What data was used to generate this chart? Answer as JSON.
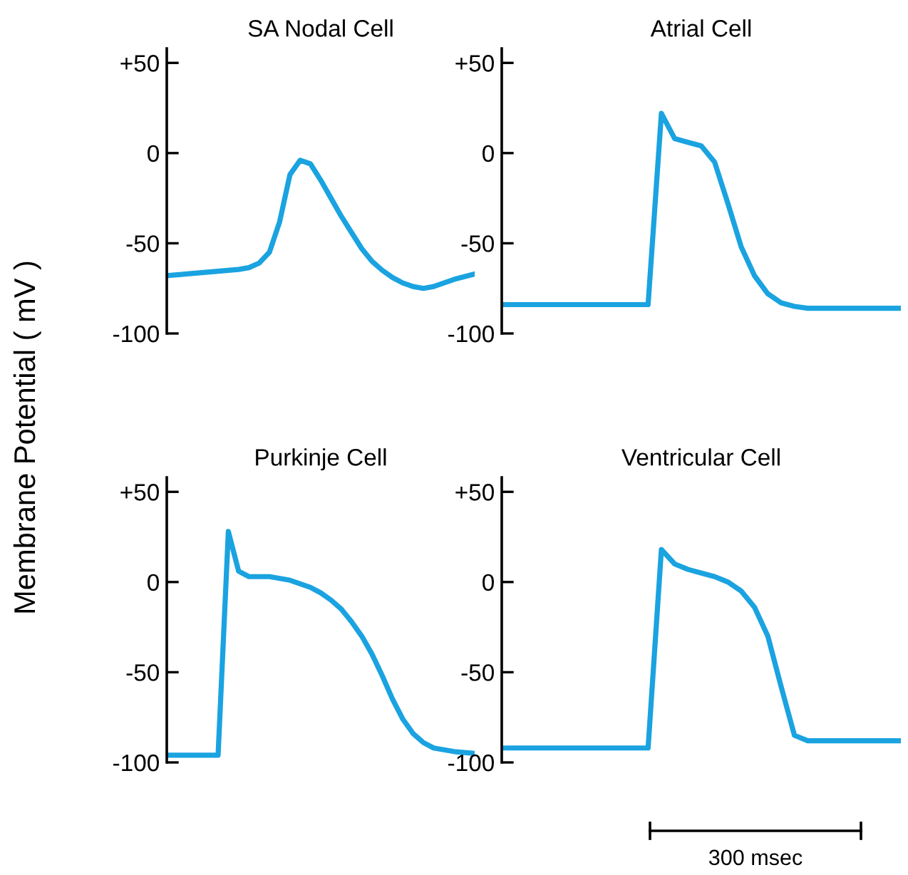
{
  "chart_data": [
    {
      "type": "line",
      "title": "SA Nodal Cell",
      "ylabel": "Membrane Potential ( mV )",
      "categories": [
        null,
        null,
        null,
        null,
        null,
        null,
        null,
        null,
        null,
        null,
        null,
        null,
        null,
        null,
        null,
        null,
        null,
        null,
        null,
        null,
        null,
        null,
        null,
        null,
        null,
        null,
        null,
        null,
        null,
        null,
        null
      ],
      "series": [
        {
          "color": "#1aa3e0",
          "values": [
            -68,
            -67.5,
            -67,
            -66.5,
            -66,
            -65.5,
            -65,
            -64.5,
            -63.5,
            -61,
            -55,
            -38,
            -12,
            -4,
            -6,
            -15,
            -25,
            -35,
            -44,
            -53,
            -60,
            -65,
            -69,
            -72,
            -74,
            -75,
            -74,
            -72,
            -70,
            -68.5,
            -67
          ]
        }
      ],
      "ylim": [
        -100,
        58
      ],
      "yticks": [
        {
          "value": 50,
          "label": "+50"
        },
        0,
        {
          "value": -50,
          "label": "-50"
        },
        {
          "value": -100,
          "label": "-100"
        }
      ],
      "tick_labels": "y",
      "grid": false,
      "legend": false
    },
    {
      "type": "line",
      "title": "Atrial Cell",
      "categories": [
        null,
        null,
        null,
        null,
        null,
        null,
        null,
        null,
        null,
        null,
        null,
        null,
        null,
        null,
        null,
        null,
        null,
        null,
        null,
        null,
        null,
        null,
        null,
        null,
        null,
        null,
        null,
        null,
        null,
        null,
        null
      ],
      "series": [
        {
          "color": "#1aa3e0",
          "values": [
            -84,
            -84,
            -84,
            -84,
            -84,
            -84,
            -84,
            -84,
            -84,
            -84,
            -84,
            -84,
            22,
            8,
            6,
            4,
            -5,
            -28,
            -52,
            -68,
            -78,
            -83,
            -85,
            -86,
            -86,
            -86,
            -86,
            -86,
            -86,
            -86,
            -86
          ]
        }
      ],
      "ylim": [
        -100,
        58
      ],
      "yticks": [
        {
          "value": 50,
          "label": "+50"
        },
        0,
        {
          "value": -50,
          "label": "-50"
        },
        {
          "value": -100,
          "label": "-100"
        }
      ],
      "tick_labels": "y",
      "grid": false,
      "legend": false
    },
    {
      "type": "line",
      "title": "Purkinje Cell",
      "categories": [
        null,
        null,
        null,
        null,
        null,
        null,
        null,
        null,
        null,
        null,
        null,
        null,
        null,
        null,
        null,
        null,
        null,
        null,
        null,
        null,
        null,
        null,
        null,
        null,
        null,
        null,
        null,
        null,
        null,
        null,
        null
      ],
      "series": [
        {
          "color": "#1aa3e0",
          "values": [
            -96,
            -96,
            -96,
            -96,
            -96,
            -96,
            28,
            6,
            3,
            3,
            3,
            2,
            1,
            -1,
            -3,
            -6,
            -10,
            -15,
            -22,
            -30,
            -40,
            -52,
            -65,
            -76,
            -84,
            -89,
            -92,
            -93,
            -94,
            -94.5,
            -95
          ]
        }
      ],
      "ylim": [
        -100,
        58
      ],
      "yticks": [
        {
          "value": 50,
          "label": "+50"
        },
        0,
        {
          "value": -50,
          "label": "-50"
        },
        {
          "value": -100,
          "label": "-100"
        }
      ],
      "tick_labels": "y",
      "grid": false,
      "legend": false
    },
    {
      "type": "line",
      "title": "Ventricular Cell",
      "annotations": [
        "300 msec"
      ],
      "categories": [
        null,
        null,
        null,
        null,
        null,
        null,
        null,
        null,
        null,
        null,
        null,
        null,
        null,
        null,
        null,
        null,
        null,
        null,
        null,
        null,
        null,
        null,
        null,
        null,
        null,
        null,
        null,
        null,
        null,
        null,
        null
      ],
      "series": [
        {
          "color": "#1aa3e0",
          "values": [
            -92,
            -92,
            -92,
            -92,
            -92,
            -92,
            -92,
            -92,
            -92,
            -92,
            -92,
            -92,
            18,
            10,
            7,
            5,
            3,
            0,
            -5,
            -14,
            -30,
            -58,
            -85,
            -88,
            -88,
            -88,
            -88,
            -88,
            -88,
            -88,
            -88
          ]
        }
      ],
      "ylim": [
        -100,
        58
      ],
      "yticks": [
        {
          "value": 50,
          "label": "+50"
        },
        0,
        {
          "value": -50,
          "label": "-50"
        },
        {
          "value": -100,
          "label": "-100"
        }
      ],
      "tick_labels": "y",
      "grid": false,
      "legend": false
    }
  ]
}
